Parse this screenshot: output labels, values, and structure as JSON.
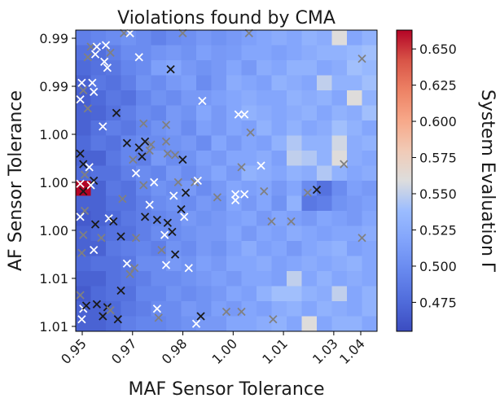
{
  "chart_data": {
    "type": "heatmap",
    "title": "Violations found by CMA",
    "xlabel": "MAF Sensor Tolerance",
    "ylabel": "AF Sensor Tolerance",
    "colorbar_label": "System Evaluation Γ",
    "xticks": [
      "0.95",
      "0.97",
      "0.98",
      "1.00",
      "1.01",
      "1.03",
      "1.04"
    ],
    "yticks": [
      "0.99",
      "0.99",
      "1.00",
      "1.00",
      "1.00",
      "1.01",
      "1.01"
    ],
    "colorbar_ticks": [
      0.475,
      0.5,
      0.525,
      0.55,
      0.575,
      0.6,
      0.625,
      0.65
    ],
    "value_range": [
      0.455,
      0.663
    ],
    "colormap": "coolwarm",
    "grid_size": [
      20,
      20
    ],
    "grid_values": [
      [
        0.49,
        0.495,
        0.5,
        0.505,
        0.5,
        0.492,
        0.5,
        0.503,
        0.51,
        0.505,
        0.51,
        0.515,
        0.52,
        0.525,
        0.52,
        0.53,
        0.525,
        0.56,
        0.52,
        0.53
      ],
      [
        0.48,
        0.478,
        0.49,
        0.5,
        0.5,
        0.506,
        0.51,
        0.505,
        0.515,
        0.51,
        0.512,
        0.52,
        0.52,
        0.515,
        0.52,
        0.525,
        0.53,
        0.53,
        0.535,
        0.54
      ],
      [
        0.475,
        0.48,
        0.485,
        0.495,
        0.5,
        0.515,
        0.52,
        0.51,
        0.505,
        0.51,
        0.52,
        0.51,
        0.525,
        0.52,
        0.53,
        0.53,
        0.52,
        0.525,
        0.54,
        0.535
      ],
      [
        0.47,
        0.485,
        0.48,
        0.49,
        0.505,
        0.5,
        0.51,
        0.515,
        0.5,
        0.51,
        0.525,
        0.52,
        0.515,
        0.53,
        0.525,
        0.52,
        0.55,
        0.53,
        0.53,
        0.54
      ],
      [
        0.468,
        0.475,
        0.485,
        0.48,
        0.495,
        0.505,
        0.5,
        0.51,
        0.51,
        0.515,
        0.52,
        0.525,
        0.52,
        0.52,
        0.53,
        0.525,
        0.53,
        0.52,
        0.56,
        0.53
      ],
      [
        0.47,
        0.472,
        0.48,
        0.49,
        0.5,
        0.495,
        0.51,
        0.505,
        0.52,
        0.51,
        0.52,
        0.53,
        0.525,
        0.52,
        0.525,
        0.53,
        0.52,
        0.53,
        0.525,
        0.54
      ],
      [
        0.47,
        0.48,
        0.49,
        0.485,
        0.495,
        0.505,
        0.51,
        0.5,
        0.515,
        0.51,
        0.52,
        0.515,
        0.53,
        0.52,
        0.53,
        0.52,
        0.525,
        0.54,
        0.53,
        0.52
      ],
      [
        0.475,
        0.485,
        0.48,
        0.495,
        0.5,
        0.5,
        0.505,
        0.51,
        0.5,
        0.52,
        0.51,
        0.52,
        0.515,
        0.53,
        0.545,
        0.53,
        0.53,
        0.555,
        0.525,
        0.53
      ],
      [
        0.47,
        0.47,
        0.485,
        0.495,
        0.49,
        0.51,
        0.5,
        0.505,
        0.515,
        0.51,
        0.52,
        0.52,
        0.525,
        0.515,
        0.55,
        0.545,
        0.53,
        0.56,
        0.525,
        0.52
      ],
      [
        0.475,
        0.48,
        0.48,
        0.49,
        0.5,
        0.495,
        0.51,
        0.5,
        0.51,
        0.52,
        0.51,
        0.53,
        0.525,
        0.52,
        0.53,
        0.525,
        0.545,
        0.53,
        0.52,
        0.525
      ],
      [
        0.663,
        0.47,
        0.485,
        0.48,
        0.495,
        0.505,
        0.5,
        0.51,
        0.5,
        0.51,
        0.52,
        0.515,
        0.52,
        0.51,
        0.52,
        0.5,
        0.48,
        0.5,
        0.515,
        0.51
      ],
      [
        0.47,
        0.47,
        0.48,
        0.48,
        0.49,
        0.5,
        0.505,
        0.5,
        0.51,
        0.505,
        0.52,
        0.51,
        0.52,
        0.505,
        0.53,
        0.485,
        0.49,
        0.505,
        0.51,
        0.515
      ],
      [
        0.465,
        0.47,
        0.475,
        0.485,
        0.49,
        0.495,
        0.5,
        0.51,
        0.505,
        0.51,
        0.515,
        0.52,
        0.51,
        0.52,
        0.515,
        0.51,
        0.52,
        0.515,
        0.51,
        0.52
      ],
      [
        0.47,
        0.475,
        0.48,
        0.48,
        0.49,
        0.5,
        0.5,
        0.505,
        0.51,
        0.51,
        0.52,
        0.51,
        0.52,
        0.515,
        0.525,
        0.52,
        0.515,
        0.52,
        0.52,
        0.525
      ],
      [
        0.47,
        0.47,
        0.485,
        0.49,
        0.495,
        0.49,
        0.505,
        0.5,
        0.51,
        0.505,
        0.515,
        0.525,
        0.515,
        0.52,
        0.51,
        0.52,
        0.525,
        0.53,
        0.515,
        0.52
      ],
      [
        0.475,
        0.48,
        0.48,
        0.485,
        0.5,
        0.5,
        0.51,
        0.505,
        0.515,
        0.51,
        0.52,
        0.52,
        0.525,
        0.515,
        0.52,
        0.525,
        0.52,
        0.525,
        0.53,
        0.52
      ],
      [
        0.47,
        0.47,
        0.48,
        0.485,
        0.49,
        0.5,
        0.5,
        0.505,
        0.51,
        0.515,
        0.51,
        0.52,
        0.52,
        0.515,
        0.55,
        0.52,
        0.53,
        0.52,
        0.525,
        0.52
      ],
      [
        0.465,
        0.475,
        0.48,
        0.48,
        0.495,
        0.495,
        0.505,
        0.5,
        0.505,
        0.51,
        0.52,
        0.515,
        0.53,
        0.54,
        0.54,
        0.53,
        0.525,
        0.55,
        0.52,
        0.53
      ],
      [
        0.47,
        0.47,
        0.475,
        0.485,
        0.49,
        0.5,
        0.5,
        0.51,
        0.505,
        0.515,
        0.51,
        0.52,
        0.515,
        0.525,
        0.53,
        0.52,
        0.53,
        0.525,
        0.52,
        0.53
      ],
      [
        0.47,
        0.47,
        0.475,
        0.49,
        0.495,
        0.495,
        0.5,
        0.505,
        0.51,
        0.51,
        0.52,
        0.52,
        0.525,
        0.53,
        0.52,
        0.56,
        0.52,
        0.53,
        0.53,
        0.52
      ]
    ],
    "violations": [
      {
        "col": 3.2,
        "row": 0.2,
        "shade": "gray"
      },
      {
        "col": 3.6,
        "row": 0.2,
        "shade": "white"
      },
      {
        "col": 7.1,
        "row": 0.2,
        "shade": "gray"
      },
      {
        "col": 11.5,
        "row": 0.2,
        "shade": "gray"
      },
      {
        "col": 1.0,
        "row": 1.1,
        "shade": "gray"
      },
      {
        "col": 1.4,
        "row": 1.1,
        "shade": "white"
      },
      {
        "col": 2.0,
        "row": 1.0,
        "shade": "white"
      },
      {
        "col": 2.3,
        "row": 1.5,
        "shade": "gray"
      },
      {
        "col": 1.3,
        "row": 1.6,
        "shade": "white"
      },
      {
        "col": 0.8,
        "row": 1.8,
        "shade": "gray"
      },
      {
        "col": 1.9,
        "row": 2.1,
        "shade": "white"
      },
      {
        "col": 2.1,
        "row": 2.5,
        "shade": "white"
      },
      {
        "col": 4.2,
        "row": 1.8,
        "shade": "white"
      },
      {
        "col": 6.3,
        "row": 2.6,
        "shade": "black"
      },
      {
        "col": 19.0,
        "row": 1.9,
        "shade": "gray"
      },
      {
        "col": 0.4,
        "row": 3.5,
        "shade": "white"
      },
      {
        "col": 1.1,
        "row": 3.5,
        "shade": "white"
      },
      {
        "col": 0.5,
        "row": 4.0,
        "shade": "gray"
      },
      {
        "col": 0.3,
        "row": 4.6,
        "shade": "white"
      },
      {
        "col": 1.2,
        "row": 4.1,
        "shade": "white"
      },
      {
        "col": 0.8,
        "row": 5.2,
        "shade": "gray"
      },
      {
        "col": 2.7,
        "row": 5.5,
        "shade": "black"
      },
      {
        "col": 8.4,
        "row": 4.7,
        "shade": "white"
      },
      {
        "col": 10.8,
        "row": 5.6,
        "shade": "white"
      },
      {
        "col": 11.2,
        "row": 5.6,
        "shade": "white"
      },
      {
        "col": 1.8,
        "row": 6.4,
        "shade": "white"
      },
      {
        "col": 4.5,
        "row": 6.2,
        "shade": "gray"
      },
      {
        "col": 6.0,
        "row": 6.3,
        "shade": "gray"
      },
      {
        "col": 11.6,
        "row": 6.8,
        "shade": "gray"
      },
      {
        "col": 3.4,
        "row": 7.5,
        "shade": "black"
      },
      {
        "col": 4.2,
        "row": 7.8,
        "shade": "black"
      },
      {
        "col": 4.6,
        "row": 7.4,
        "shade": "black"
      },
      {
        "col": 5.0,
        "row": 7.6,
        "shade": "gray"
      },
      {
        "col": 6.0,
        "row": 7.4,
        "shade": "gray"
      },
      {
        "col": 4.9,
        "row": 8.0,
        "shade": "gray"
      },
      {
        "col": 0.3,
        "row": 8.2,
        "shade": "black"
      },
      {
        "col": 3.8,
        "row": 8.6,
        "shade": "gray"
      },
      {
        "col": 4.4,
        "row": 8.4,
        "shade": "black"
      },
      {
        "col": 6.1,
        "row": 8.2,
        "shade": "gray"
      },
      {
        "col": 6.6,
        "row": 8.3,
        "shade": "gray"
      },
      {
        "col": 7.1,
        "row": 8.6,
        "shade": "black"
      },
      {
        "col": 0.5,
        "row": 8.9,
        "shade": "black"
      },
      {
        "col": 0.9,
        "row": 9.1,
        "shade": "white"
      },
      {
        "col": 0.6,
        "row": 9.6,
        "shade": "gray"
      },
      {
        "col": 4.0,
        "row": 9.5,
        "shade": "white"
      },
      {
        "col": 12.3,
        "row": 9.0,
        "shade": "white"
      },
      {
        "col": 11.0,
        "row": 9.1,
        "shade": "gray"
      },
      {
        "col": 17.8,
        "row": 8.9,
        "shade": "gray"
      },
      {
        "col": 0.3,
        "row": 10.2,
        "shade": "white"
      },
      {
        "col": 1.2,
        "row": 10.0,
        "shade": "black"
      },
      {
        "col": 1.0,
        "row": 10.3,
        "shade": "white"
      },
      {
        "col": 0.5,
        "row": 10.7,
        "shade": "black"
      },
      {
        "col": 4.5,
        "row": 10.3,
        "shade": "gray"
      },
      {
        "col": 5.2,
        "row": 10.1,
        "shade": "white"
      },
      {
        "col": 6.8,
        "row": 10.1,
        "shade": "gray"
      },
      {
        "col": 7.9,
        "row": 10.1,
        "shade": "gray"
      },
      {
        "col": 8.1,
        "row": 10.0,
        "shade": "white"
      },
      {
        "col": 10.6,
        "row": 10.9,
        "shade": "white"
      },
      {
        "col": 11.2,
        "row": 10.9,
        "shade": "white"
      },
      {
        "col": 12.5,
        "row": 10.7,
        "shade": "gray"
      },
      {
        "col": 15.4,
        "row": 10.8,
        "shade": "gray"
      },
      {
        "col": 16.0,
        "row": 10.6,
        "shade": "black"
      },
      {
        "col": 6.5,
        "row": 11.0,
        "shade": "white"
      },
      {
        "col": 7.3,
        "row": 10.8,
        "shade": "black"
      },
      {
        "col": 3.1,
        "row": 11.2,
        "shade": "gray"
      },
      {
        "col": 4.9,
        "row": 11.6,
        "shade": "white"
      },
      {
        "col": 7.0,
        "row": 11.9,
        "shade": "black"
      },
      {
        "col": 9.4,
        "row": 11.1,
        "shade": "gray"
      },
      {
        "col": 10.6,
        "row": 11.3,
        "shade": "white"
      },
      {
        "col": 0.6,
        "row": 12.0,
        "shade": "gray"
      },
      {
        "col": 0.3,
        "row": 12.4,
        "shade": "white"
      },
      {
        "col": 1.3,
        "row": 12.9,
        "shade": "black"
      },
      {
        "col": 2.2,
        "row": 12.5,
        "shade": "white"
      },
      {
        "col": 2.5,
        "row": 12.7,
        "shade": "black"
      },
      {
        "col": 4.6,
        "row": 12.4,
        "shade": "black"
      },
      {
        "col": 5.4,
        "row": 12.6,
        "shade": "black"
      },
      {
        "col": 6.1,
        "row": 12.8,
        "shade": "black"
      },
      {
        "col": 7.2,
        "row": 12.4,
        "shade": "white"
      },
      {
        "col": 13.0,
        "row": 12.7,
        "shade": "gray"
      },
      {
        "col": 14.3,
        "row": 12.7,
        "shade": "gray"
      },
      {
        "col": 0.5,
        "row": 13.6,
        "shade": "gray"
      },
      {
        "col": 1.7,
        "row": 13.8,
        "shade": "gray"
      },
      {
        "col": 3.0,
        "row": 13.7,
        "shade": "black"
      },
      {
        "col": 4.0,
        "row": 13.8,
        "shade": "gray"
      },
      {
        "col": 5.9,
        "row": 13.6,
        "shade": "white"
      },
      {
        "col": 6.4,
        "row": 13.4,
        "shade": "black"
      },
      {
        "col": 19.0,
        "row": 13.8,
        "shade": "gray"
      },
      {
        "col": 0.4,
        "row": 14.8,
        "shade": "gray"
      },
      {
        "col": 1.2,
        "row": 14.6,
        "shade": "white"
      },
      {
        "col": 5.7,
        "row": 14.6,
        "shade": "gray"
      },
      {
        "col": 6.6,
        "row": 14.9,
        "shade": "black"
      },
      {
        "col": 3.4,
        "row": 15.5,
        "shade": "white"
      },
      {
        "col": 3.9,
        "row": 15.8,
        "shade": "gray"
      },
      {
        "col": 3.6,
        "row": 16.2,
        "shade": "gray"
      },
      {
        "col": 6.0,
        "row": 15.6,
        "shade": "white"
      },
      {
        "col": 7.5,
        "row": 15.8,
        "shade": "white"
      },
      {
        "col": 3.0,
        "row": 17.3,
        "shade": "black"
      },
      {
        "col": 0.3,
        "row": 17.6,
        "shade": "gray"
      },
      {
        "col": 0.5,
        "row": 18.5,
        "shade": "white"
      },
      {
        "col": 0.7,
        "row": 18.3,
        "shade": "black"
      },
      {
        "col": 1.4,
        "row": 18.2,
        "shade": "black"
      },
      {
        "col": 2.1,
        "row": 18.4,
        "shade": "black"
      },
      {
        "col": 1.8,
        "row": 19.0,
        "shade": "black"
      },
      {
        "col": 2.3,
        "row": 18.6,
        "shade": "gray"
      },
      {
        "col": 2.8,
        "row": 19.2,
        "shade": "black"
      },
      {
        "col": 0.4,
        "row": 19.2,
        "shade": "white"
      },
      {
        "col": 5.4,
        "row": 18.5,
        "shade": "white"
      },
      {
        "col": 5.5,
        "row": 19.1,
        "shade": "gray"
      },
      {
        "col": 8.3,
        "row": 19.0,
        "shade": "black"
      },
      {
        "col": 8.0,
        "row": 19.5,
        "shade": "white"
      },
      {
        "col": 10.0,
        "row": 18.7,
        "shade": "gray"
      },
      {
        "col": 11.0,
        "row": 18.7,
        "shade": "gray"
      },
      {
        "col": 13.1,
        "row": 19.2,
        "shade": "gray"
      }
    ]
  }
}
